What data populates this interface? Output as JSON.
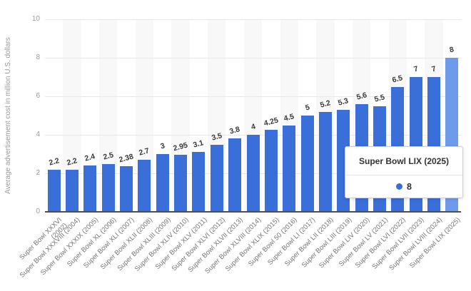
{
  "chart_data": {
    "type": "bar",
    "title": "",
    "xlabel": "",
    "ylabel": "Average advertisement cost in million U.S. dollars",
    "ylim": [
      0,
      10
    ],
    "yticks": [
      0,
      2,
      4,
      6,
      8,
      10
    ],
    "grid": true,
    "legend": "none",
    "categories": [
      "Super Bowl XXXVI\n(2002)",
      "Super Bowl XXXVIII (2004)",
      "Super Bowl XXXIX (2005)",
      "Super Bowl XL (2006)",
      "Super Bowl XLI (2007)",
      "Super Bowl XLII (2008)",
      "Super Bowl XLIII (2009)",
      "Super Bowl XLIV (2010)",
      "Super Bowl XLV (2011)",
      "Super Bowl XLVI (2012)",
      "Super Bowl XLVII (2013)",
      "Super Bowl XLVIII (2014)",
      "Super Bowl XLIX (2015)",
      "Super Bowl 50 (2016)",
      "Super Bowl LI (2017)",
      "Super Bowl LII (2018)",
      "Super Bowl LIII (2019)",
      "Super Bowl LIV (2020)",
      "Super Bowl LV (2021)",
      "Super Bowl LVI (2022)",
      "Super Bowl LVII (2023)",
      "Super Bowl LVIII (2024)",
      "Super Bowl LIX (2025)"
    ],
    "values": [
      2.2,
      2.2,
      2.4,
      2.5,
      2.38,
      2.7,
      3,
      2.95,
      3.1,
      3.5,
      3.8,
      4,
      4.25,
      4.5,
      5,
      5.2,
      5.3,
      5.6,
      5.5,
      6.5,
      7,
      7,
      8
    ],
    "highlighted_index": 22,
    "colors": {
      "bar": "#3A6ED8",
      "bar_highlight": "#6E9AEC",
      "grid": "#e8e8e8",
      "band": "#f8f8f8",
      "axis_line": "#4b5058",
      "tick_label": "#9b9b9b",
      "x_label": "#767676",
      "value_label": "#3a3a3a"
    }
  },
  "tooltip": {
    "title": "Super Bowl LIX (2025)",
    "value": "8",
    "marker_color": "#3A6ED8"
  }
}
